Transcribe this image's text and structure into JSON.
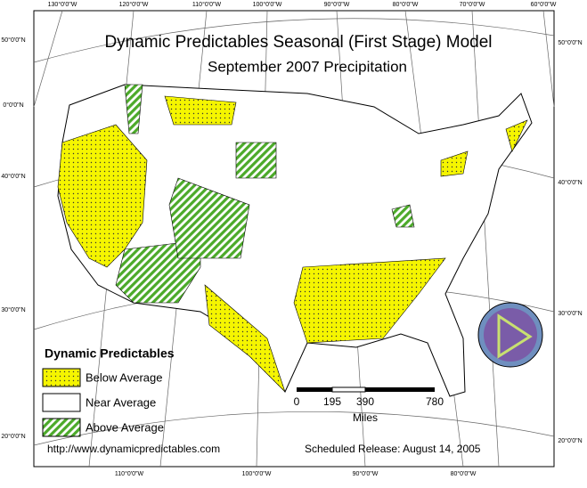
{
  "title": "Dynamic Predictables Seasonal (First Stage) Model",
  "subtitle": "September 2007 Precipitation",
  "graticule": {
    "top": [
      "130°0'0\"W",
      "120°0'0\"W",
      "110°0'0\"W",
      "100°0'0\"W",
      "90°0'0\"W",
      "80°0'0\"W",
      "70°0'0\"W",
      "60°0'0\"W"
    ],
    "left": [
      "50°0'0\"N",
      "0°0'0\"N",
      "40°0'0\"N",
      "30°0'0\"N",
      "20°0'0\"N"
    ],
    "right": [
      "50°0'0\"N",
      "40°0'0\"N",
      "30°0'0\"N",
      "20°0'0\"N"
    ],
    "bottom": [
      "110°0'0\"W",
      "100°0'0\"W",
      "90°0'0\"W",
      "80°0'0\"W"
    ]
  },
  "legend": {
    "title": "Dynamic Predictables",
    "items": [
      "Below Average",
      "Near Average",
      "Above Average"
    ]
  },
  "scale_bar": {
    "labels": [
      "0",
      "195",
      "390",
      "780"
    ],
    "unit": "Miles"
  },
  "footer": {
    "url": "http://www.dynamicpredictables.com",
    "release": "Scheduled Release: August 14, 2005"
  }
}
